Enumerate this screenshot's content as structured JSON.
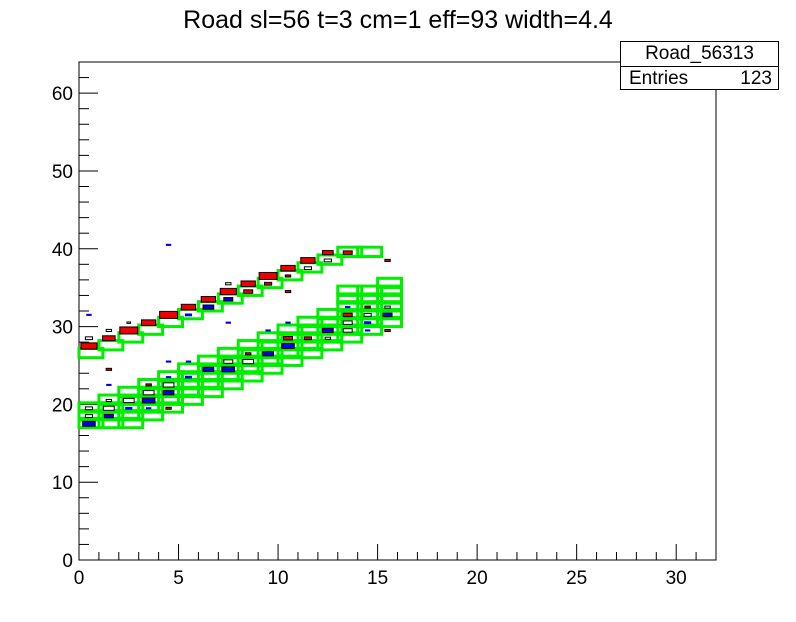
{
  "chart_data": {
    "type": "heatmap",
    "title": "Road sl=56 t=3 cm=1 eff=93 width=4.4",
    "xlabel": "",
    "ylabel": "",
    "xlim": [
      0,
      32
    ],
    "ylim": [
      0,
      64
    ],
    "x_ticks": [
      "0",
      "5",
      "10",
      "15",
      "20",
      "25",
      "30"
    ],
    "y_ticks": [
      "0",
      "10",
      "20",
      "30",
      "40",
      "50",
      "60"
    ],
    "stats": {
      "name": "Road_56313",
      "entries_label": "Entries",
      "entries_value": "123"
    },
    "colors": {
      "road": "#00ee00",
      "red": "#ee0000",
      "blue": "#0000ee",
      "open": "#000000"
    },
    "road_boxes": [
      [
        0,
        26
      ],
      [
        1,
        27
      ],
      [
        2,
        28
      ],
      [
        3,
        29
      ],
      [
        4,
        30
      ],
      [
        5,
        31
      ],
      [
        6,
        32
      ],
      [
        7,
        33
      ],
      [
        8,
        34
      ],
      [
        9,
        35
      ],
      [
        10,
        36
      ],
      [
        11,
        37
      ],
      [
        12,
        38
      ],
      [
        13,
        39
      ],
      [
        14,
        39
      ],
      [
        0,
        17
      ],
      [
        0,
        18
      ],
      [
        0,
        19
      ],
      [
        1,
        17
      ],
      [
        1,
        18
      ],
      [
        1,
        19
      ],
      [
        1,
        20
      ],
      [
        2,
        17
      ],
      [
        2,
        18
      ],
      [
        2,
        19
      ],
      [
        2,
        20
      ],
      [
        2,
        21
      ],
      [
        3,
        18
      ],
      [
        3,
        19
      ],
      [
        3,
        20
      ],
      [
        3,
        21
      ],
      [
        3,
        22
      ],
      [
        4,
        19
      ],
      [
        4,
        20
      ],
      [
        4,
        21
      ],
      [
        4,
        22
      ],
      [
        4,
        23
      ],
      [
        5,
        20
      ],
      [
        5,
        21
      ],
      [
        5,
        22
      ],
      [
        5,
        23
      ],
      [
        5,
        24
      ],
      [
        6,
        21
      ],
      [
        6,
        22
      ],
      [
        6,
        23
      ],
      [
        6,
        24
      ],
      [
        6,
        25
      ],
      [
        7,
        22
      ],
      [
        7,
        23
      ],
      [
        7,
        24
      ],
      [
        7,
        25
      ],
      [
        7,
        26
      ],
      [
        8,
        23
      ],
      [
        8,
        24
      ],
      [
        8,
        25
      ],
      [
        8,
        26
      ],
      [
        8,
        27
      ],
      [
        9,
        24
      ],
      [
        9,
        25
      ],
      [
        9,
        26
      ],
      [
        9,
        27
      ],
      [
        9,
        28
      ],
      [
        10,
        25
      ],
      [
        10,
        26
      ],
      [
        10,
        27
      ],
      [
        10,
        28
      ],
      [
        10,
        29
      ],
      [
        11,
        26
      ],
      [
        11,
        27
      ],
      [
        11,
        28
      ],
      [
        11,
        29
      ],
      [
        11,
        30
      ],
      [
        12,
        27
      ],
      [
        12,
        28
      ],
      [
        12,
        29
      ],
      [
        12,
        30
      ],
      [
        12,
        31
      ],
      [
        13,
        28
      ],
      [
        13,
        29
      ],
      [
        13,
        30
      ],
      [
        13,
        31
      ],
      [
        13,
        32
      ],
      [
        13,
        33
      ],
      [
        13,
        34
      ],
      [
        14,
        29
      ],
      [
        14,
        30
      ],
      [
        14,
        31
      ],
      [
        14,
        32
      ],
      [
        14,
        33
      ],
      [
        14,
        34
      ],
      [
        15,
        30
      ],
      [
        15,
        31
      ],
      [
        15,
        32
      ],
      [
        15,
        33
      ],
      [
        15,
        34
      ],
      [
        15,
        35
      ]
    ],
    "cells": [
      {
        "x": 0.5,
        "y": 27.5,
        "c": "red",
        "s": 0.9
      },
      {
        "x": 1.5,
        "y": 28.5,
        "c": "red",
        "s": 0.7
      },
      {
        "x": 2.5,
        "y": 29.5,
        "c": "red",
        "s": 1.0
      },
      {
        "x": 3.5,
        "y": 30.5,
        "c": "red",
        "s": 0.8
      },
      {
        "x": 4.5,
        "y": 31.5,
        "c": "red",
        "s": 1.0
      },
      {
        "x": 5.5,
        "y": 32.5,
        "c": "red",
        "s": 0.8
      },
      {
        "x": 6.5,
        "y": 33.5,
        "c": "red",
        "s": 0.8
      },
      {
        "x": 7.5,
        "y": 34.5,
        "c": "red",
        "s": 0.9
      },
      {
        "x": 8.5,
        "y": 35.5,
        "c": "red",
        "s": 0.8
      },
      {
        "x": 9.5,
        "y": 36.5,
        "c": "red",
        "s": 1.0
      },
      {
        "x": 10.5,
        "y": 37.5,
        "c": "red",
        "s": 0.8
      },
      {
        "x": 11.5,
        "y": 38.5,
        "c": "red",
        "s": 0.8
      },
      {
        "x": 12.5,
        "y": 39.5,
        "c": "red",
        "s": 0.6
      },
      {
        "x": 13.5,
        "y": 39.5,
        "c": "red",
        "s": 0.5
      },
      {
        "x": 0.5,
        "y": 28.5,
        "c": "open",
        "s": 0.4
      },
      {
        "x": 1.5,
        "y": 29.5,
        "c": "open",
        "s": 0.3
      },
      {
        "x": 2.5,
        "y": 30.5,
        "c": "open",
        "s": 0.2
      },
      {
        "x": 7.5,
        "y": 35.5,
        "c": "open",
        "s": 0.3
      },
      {
        "x": 8.5,
        "y": 34.5,
        "c": "red",
        "s": 0.5
      },
      {
        "x": 9.5,
        "y": 35.5,
        "c": "red",
        "s": 0.4
      },
      {
        "x": 10.5,
        "y": 36.5,
        "c": "red",
        "s": 0.3
      },
      {
        "x": 11.5,
        "y": 37.5,
        "c": "open",
        "s": 0.4
      },
      {
        "x": 12.5,
        "y": 38.5,
        "c": "open",
        "s": 0.4
      },
      {
        "x": 6.5,
        "y": 32.5,
        "c": "blue",
        "s": 0.6
      },
      {
        "x": 7.5,
        "y": 33.5,
        "c": "blue",
        "s": 0.5
      },
      {
        "x": 5.5,
        "y": 31.5,
        "c": "blue",
        "s": 0.4
      },
      {
        "x": 0.5,
        "y": 17.5,
        "c": "blue",
        "s": 0.7
      },
      {
        "x": 0.5,
        "y": 18.5,
        "c": "open",
        "s": 0.4
      },
      {
        "x": 0.5,
        "y": 19.5,
        "c": "open",
        "s": 0.4
      },
      {
        "x": 1.5,
        "y": 19.5,
        "c": "open",
        "s": 0.6
      },
      {
        "x": 1.5,
        "y": 18.5,
        "c": "blue",
        "s": 0.5
      },
      {
        "x": 1.5,
        "y": 20.5,
        "c": "open",
        "s": 0.3
      },
      {
        "x": 2.5,
        "y": 20.5,
        "c": "open",
        "s": 0.6
      },
      {
        "x": 2.5,
        "y": 19.5,
        "c": "blue",
        "s": 0.4
      },
      {
        "x": 3.5,
        "y": 21.5,
        "c": "open",
        "s": 0.6
      },
      {
        "x": 3.5,
        "y": 20.5,
        "c": "blue",
        "s": 0.7
      },
      {
        "x": 3.5,
        "y": 22.5,
        "c": "red",
        "s": 0.3
      },
      {
        "x": 4.5,
        "y": 22.5,
        "c": "open",
        "s": 0.6
      },
      {
        "x": 4.5,
        "y": 21.5,
        "c": "blue",
        "s": 0.6
      },
      {
        "x": 4.5,
        "y": 23.5,
        "c": "blue",
        "s": 0.3
      },
      {
        "x": 5.5,
        "y": 23.5,
        "c": "blue",
        "s": 0.4
      },
      {
        "x": 6.5,
        "y": 24.5,
        "c": "blue",
        "s": 0.6
      },
      {
        "x": 7.5,
        "y": 24.5,
        "c": "blue",
        "s": 0.7
      },
      {
        "x": 7.5,
        "y": 25.5,
        "c": "open",
        "s": 0.5
      },
      {
        "x": 8.5,
        "y": 25.5,
        "c": "open",
        "s": 0.6
      },
      {
        "x": 8.5,
        "y": 26.5,
        "c": "red",
        "s": 0.3
      },
      {
        "x": 9.5,
        "y": 26.5,
        "c": "blue",
        "s": 0.6
      },
      {
        "x": 10.5,
        "y": 27.5,
        "c": "blue",
        "s": 0.7
      },
      {
        "x": 10.5,
        "y": 28.5,
        "c": "red",
        "s": 0.5
      },
      {
        "x": 11.5,
        "y": 28.5,
        "c": "red",
        "s": 0.4
      },
      {
        "x": 12.5,
        "y": 29.5,
        "c": "blue",
        "s": 0.6
      },
      {
        "x": 12.5,
        "y": 28.5,
        "c": "open",
        "s": 0.3
      },
      {
        "x": 13.5,
        "y": 29.5,
        "c": "open",
        "s": 0.5
      },
      {
        "x": 13.5,
        "y": 30.5,
        "c": "open",
        "s": 0.5
      },
      {
        "x": 13.5,
        "y": 31.5,
        "c": "red",
        "s": 0.5
      },
      {
        "x": 14.5,
        "y": 30.5,
        "c": "blue",
        "s": 0.4
      },
      {
        "x": 14.5,
        "y": 31.5,
        "c": "open",
        "s": 0.4
      },
      {
        "x": 14.5,
        "y": 32.5,
        "c": "red",
        "s": 0.3
      },
      {
        "x": 15.5,
        "y": 31.5,
        "c": "blue",
        "s": 0.5
      },
      {
        "x": 15.5,
        "y": 32.5,
        "c": "open",
        "s": 0.3
      },
      {
        "x": 15.5,
        "y": 29.5,
        "c": "red",
        "s": 0.3
      },
      {
        "x": 0.5,
        "y": 31.5,
        "c": "blue",
        "s": 0.3
      },
      {
        "x": 4.5,
        "y": 40.5,
        "c": "blue",
        "s": 0.3
      },
      {
        "x": 1.5,
        "y": 24.5,
        "c": "red",
        "s": 0.3
      },
      {
        "x": 7.5,
        "y": 30.5,
        "c": "blue",
        "s": 0.3
      },
      {
        "x": 10.5,
        "y": 34.5,
        "c": "red",
        "s": 0.3
      },
      {
        "x": 15.5,
        "y": 38.5,
        "c": "red",
        "s": 0.3
      },
      {
        "x": 1.5,
        "y": 22.5,
        "c": "blue",
        "s": 0.3
      },
      {
        "x": 4.5,
        "y": 25.5,
        "c": "blue",
        "s": 0.3
      },
      {
        "x": 5.5,
        "y": 25.5,
        "c": "blue",
        "s": 0.3
      },
      {
        "x": 9.5,
        "y": 29.5,
        "c": "blue",
        "s": 0.3
      },
      {
        "x": 10.5,
        "y": 30.5,
        "c": "blue",
        "s": 0.3
      },
      {
        "x": 4.5,
        "y": 19.5,
        "c": "red",
        "s": 0.3
      },
      {
        "x": 3.5,
        "y": 19.5,
        "c": "blue",
        "s": 0.3
      },
      {
        "x": 13.5,
        "y": 32.5,
        "c": "blue",
        "s": 0.3
      },
      {
        "x": 14.5,
        "y": 29.5,
        "c": "blue",
        "s": 0.3
      }
    ]
  }
}
